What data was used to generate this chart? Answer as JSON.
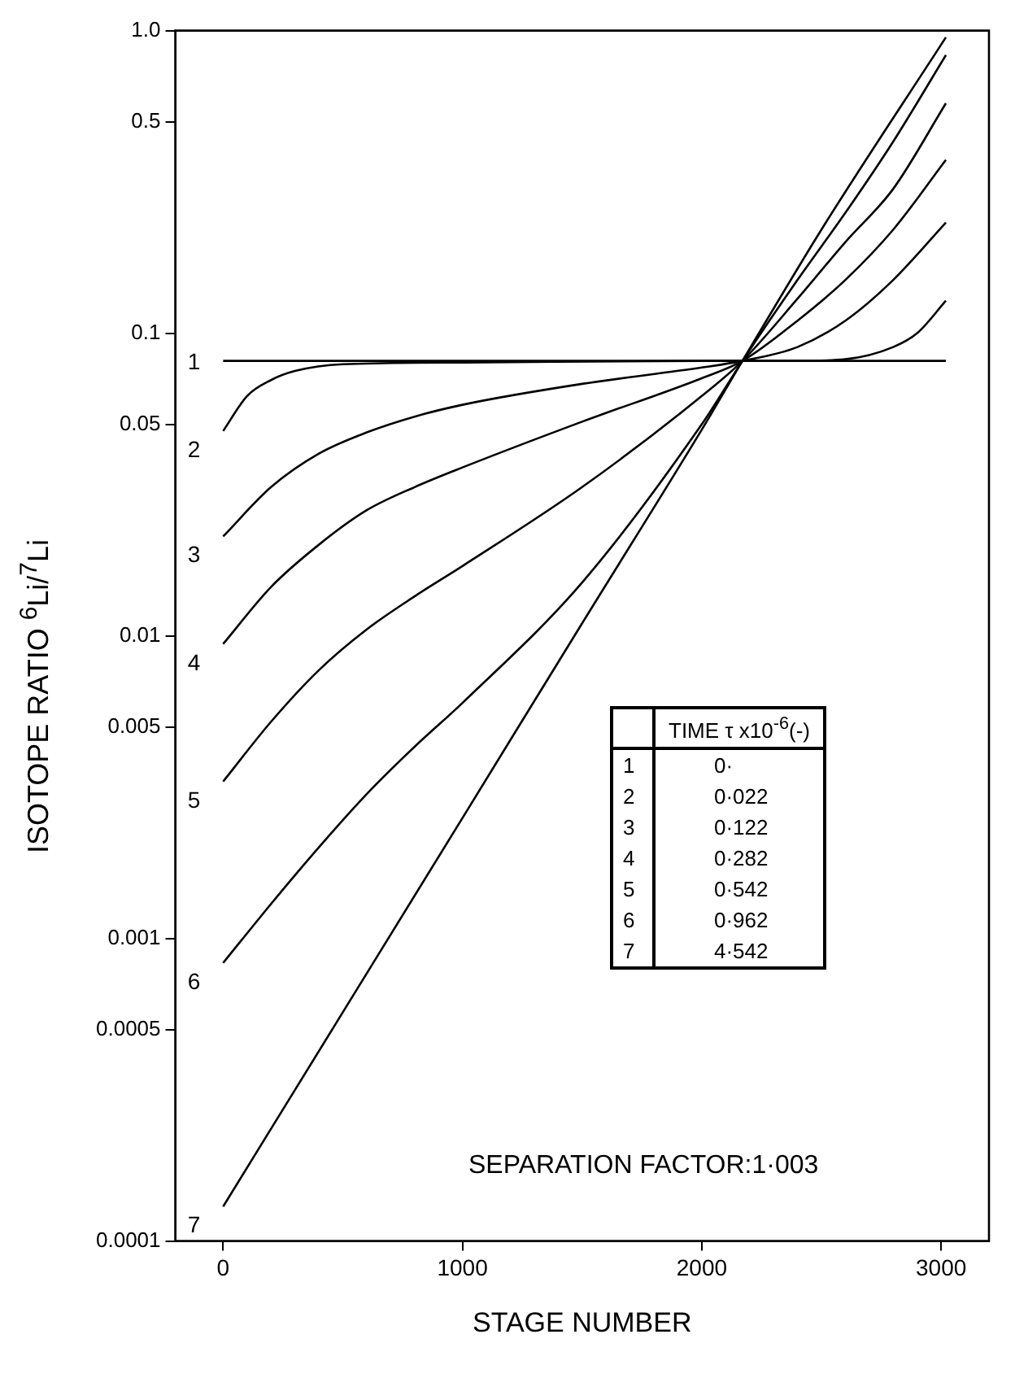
{
  "chart_data": {
    "type": "line",
    "xlabel": "STAGE NUMBER",
    "ylabel": "ISOTOPE RATIO  $^{6}$Li/$^{7}$Li",
    "legend_title": "TIME τ x10$^{-6}$(-)",
    "log": "y",
    "grid": false,
    "legend": "bottom right",
    "marker": "none",
    "line_style": "solid",
    "xlim": [
      -200,
      3200
    ],
    "xticks": [
      0,
      1000,
      2000,
      3000
    ],
    "ylim": [
      0.0001,
      1
    ],
    "yticks": [
      0.0001,
      0.0005,
      0.001,
      0.005,
      0.01,
      0.05,
      0.1,
      0.5,
      {
        "value": 1,
        "label": "1.0"
      }
    ],
    "series": [
      {
        "name": "1",
        "color": "#000000",
        "x": [
          0,
          3020
        ],
        "values": [
          0.081,
          0.081
        ]
      },
      {
        "name": "2",
        "color": "#000000",
        "x": [
          0,
          100,
          200,
          300,
          500,
          1000,
          2000,
          2400,
          2600,
          2800,
          2900,
          3020
        ],
        "values": [
          0.0475,
          0.062,
          0.07,
          0.075,
          0.079,
          0.08,
          0.081,
          0.081,
          0.082,
          0.09,
          0.1,
          0.128
        ]
      },
      {
        "name": "3",
        "color": "#000000",
        "x": [
          0,
          200,
          400,
          600,
          800,
          1000,
          1500,
          2000,
          2170,
          2400,
          2600,
          2800,
          3020
        ],
        "values": [
          0.0213,
          0.031,
          0.04,
          0.047,
          0.053,
          0.058,
          0.068,
          0.077,
          0.081,
          0.09,
          0.11,
          0.15,
          0.232
        ]
      },
      {
        "name": "4",
        "color": "#000000",
        "x": [
          0,
          200,
          400,
          600,
          800,
          1000,
          1500,
          2000,
          2170,
          2400,
          2600,
          2800,
          3020
        ],
        "values": [
          0.0094,
          0.0145,
          0.02,
          0.026,
          0.031,
          0.036,
          0.051,
          0.071,
          0.081,
          0.11,
          0.15,
          0.22,
          0.374
        ]
      },
      {
        "name": "5",
        "color": "#000000",
        "x": [
          0,
          200,
          400,
          600,
          800,
          1000,
          1500,
          2000,
          2170,
          2400,
          2600,
          2800,
          3020
        ],
        "values": [
          0.0033,
          0.0052,
          0.0077,
          0.0105,
          0.0135,
          0.017,
          0.031,
          0.062,
          0.081,
          0.13,
          0.2,
          0.3,
          0.575
        ]
      },
      {
        "name": "6",
        "color": "#000000",
        "x": [
          0,
          200,
          400,
          600,
          800,
          1000,
          1500,
          2000,
          2170,
          2400,
          2600,
          2800,
          3020
        ],
        "values": [
          0.00083,
          0.0013,
          0.002,
          0.003,
          0.0043,
          0.006,
          0.015,
          0.05,
          0.081,
          0.15,
          0.25,
          0.43,
          0.83
        ]
      },
      {
        "name": "7",
        "color": "#000000",
        "x": [
          0,
          500,
          1000,
          1500,
          2000,
          2170,
          2500,
          3020
        ],
        "values": [
          0.00013,
          0.00057,
          0.0025,
          0.011,
          0.048,
          0.081,
          0.22,
          0.95
        ]
      }
    ],
    "annotations": [
      "0·",
      "0·022",
      "0·122",
      "0·282",
      "0·542",
      "0·962",
      "4·542",
      "SEPARATION  FACTOR:1·003"
    ]
  }
}
